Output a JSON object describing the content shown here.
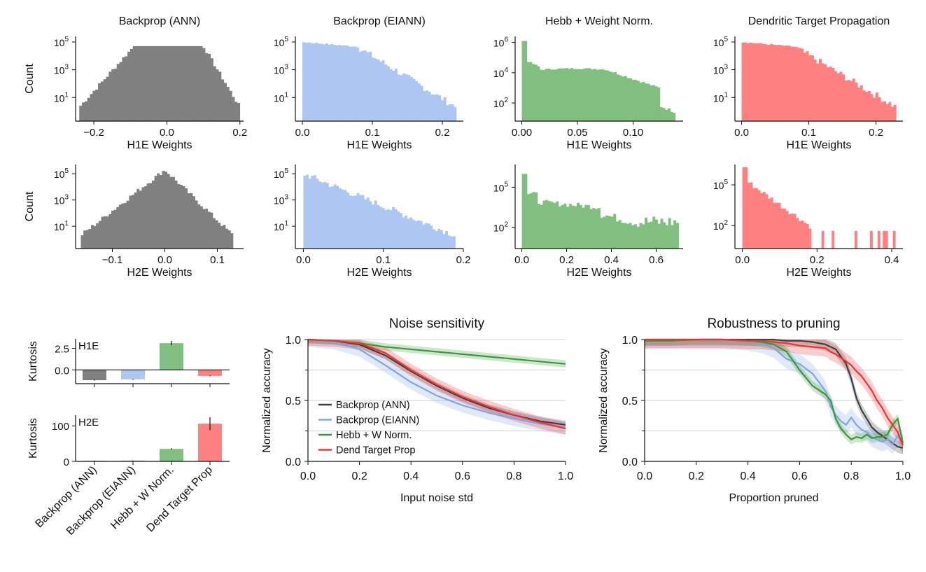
{
  "chart_data": {
    "histograms": {
      "columns": [
        "Backprop (ANN)",
        "Backprop (EIANN)",
        "Hebb + Weight Norm.",
        "Dendritic Target Propagation"
      ],
      "colors": [
        "#808080",
        "#aec7f2",
        "#80bf80",
        "#ff8080"
      ],
      "ylabel": "Count",
      "rows": [
        {
          "xlabel": "H1E Weights",
          "panels": [
            {
              "type": "histogram",
              "scale": "log",
              "shape": "symmetric_plateau",
              "range": [
                -0.24,
                0.2
              ],
              "xlim": [
                -0.25,
                0.21
              ],
              "plateau": [
                -0.09,
                0.1
              ],
              "ylog": [
                -0.7,
                5.4
              ],
              "peak": 4.7,
              "floor": 0.3,
              "xticks": [
                {
                  "v": -0.2,
                  "label": "−0.2"
                },
                {
                  "v": 0,
                  "label": "0.0"
                },
                {
                  "v": 0.2,
                  "label": "0.2"
                }
              ],
              "yticks": [
                {
                  "v": 1,
                  "label": "10",
                  "exp": "1"
                },
                {
                  "v": 3,
                  "label": "10",
                  "exp": "3"
                },
                {
                  "v": 5,
                  "label": "10",
                  "exp": "5"
                }
              ]
            },
            {
              "type": "histogram",
              "scale": "log",
              "shape": "decay",
              "range": [
                0,
                0.22
              ],
              "xlim": [
                -0.01,
                0.23
              ],
              "ylog": [
                -0.7,
                5.4
              ],
              "peak": 5.0,
              "shoulder": 0.08,
              "floor": 0.3,
              "xticks": [
                {
                  "v": 0,
                  "label": "0.0"
                },
                {
                  "v": 0.1,
                  "label": "0.1"
                },
                {
                  "v": 0.2,
                  "label": "0.2"
                }
              ],
              "yticks": [
                {
                  "v": 1,
                  "label": "10",
                  "exp": "1"
                },
                {
                  "v": 3,
                  "label": "10",
                  "exp": "3"
                },
                {
                  "v": 5,
                  "label": "10",
                  "exp": "5"
                }
              ]
            },
            {
              "type": "histogram",
              "scale": "log",
              "shape": "hebb",
              "range": [
                0,
                0.138
              ],
              "xlim": [
                -0.006,
                0.145
              ],
              "ylog": [
                0.8,
                6.4
              ],
              "peak": 6.1,
              "mid": 4.3,
              "floor": 1.4,
              "xticks": [
                {
                  "v": 0,
                  "label": "0.00"
                },
                {
                  "v": 0.05,
                  "label": "0.05"
                },
                {
                  "v": 0.1,
                  "label": "0.10"
                }
              ],
              "yticks": [
                {
                  "v": 2,
                  "label": "10",
                  "exp": "2"
                },
                {
                  "v": 4,
                  "label": "10",
                  "exp": "4"
                },
                {
                  "v": 6,
                  "label": "10",
                  "exp": "6"
                }
              ]
            },
            {
              "type": "histogram",
              "scale": "log",
              "shape": "decay",
              "range": [
                0,
                0.23
              ],
              "xlim": [
                -0.01,
                0.24
              ],
              "ylog": [
                -0.7,
                5.4
              ],
              "peak": 5.0,
              "shoulder": 0.08,
              "floor": 0.3,
              "xticks": [
                {
                  "v": 0,
                  "label": "0.0"
                },
                {
                  "v": 0.1,
                  "label": "0.1"
                },
                {
                  "v": 0.2,
                  "label": "0.2"
                }
              ],
              "yticks": [
                {
                  "v": 1,
                  "label": "10",
                  "exp": "1"
                },
                {
                  "v": 3,
                  "label": "10",
                  "exp": "3"
                },
                {
                  "v": 5,
                  "label": "10",
                  "exp": "5"
                }
              ]
            }
          ]
        },
        {
          "xlabel": "H2E Weights",
          "panels": [
            {
              "type": "histogram",
              "scale": "log",
              "shape": "symmetric_peak",
              "range": [
                -0.16,
                0.13
              ],
              "xlim": [
                -0.17,
                0.15
              ],
              "ylog": [
                -0.7,
                5.7
              ],
              "peak": 5.3,
              "floor": 0.3,
              "xticks": [
                {
                  "v": -0.1,
                  "label": "−0.1"
                },
                {
                  "v": 0,
                  "label": "0.0"
                },
                {
                  "v": 0.1,
                  "label": "0.1"
                }
              ],
              "yticks": [
                {
                  "v": 1,
                  "label": "10",
                  "exp": "1"
                },
                {
                  "v": 3,
                  "label": "10",
                  "exp": "3"
                },
                {
                  "v": 5,
                  "label": "10",
                  "exp": "5"
                }
              ]
            },
            {
              "type": "histogram",
              "scale": "log",
              "shape": "decay",
              "range": [
                0,
                0.19
              ],
              "xlim": [
                -0.01,
                0.2
              ],
              "ylog": [
                -0.7,
                5.7
              ],
              "peak": 5.4,
              "shoulder": 0.0,
              "floor": 0.3,
              "xticks": [
                {
                  "v": 0,
                  "label": "0.0"
                },
                {
                  "v": 0.1,
                  "label": "0.1"
                },
                {
                  "v": 0.2,
                  "label": "0.2"
                }
              ],
              "yticks": [
                {
                  "v": 1,
                  "label": "10",
                  "exp": "1"
                },
                {
                  "v": 3,
                  "label": "10",
                  "exp": "3"
                },
                {
                  "v": 5,
                  "label": "10",
                  "exp": "5"
                }
              ]
            },
            {
              "type": "histogram",
              "scale": "log",
              "shape": "hebb2",
              "range": [
                0,
                0.7
              ],
              "xlim": [
                -0.03,
                0.72
              ],
              "ylog": [
                0.4,
                6.7
              ],
              "peak": 6.0,
              "mid": 3.9,
              "floor": 1.8,
              "xticks": [
                {
                  "v": 0,
                  "label": "0.0"
                },
                {
                  "v": 0.2,
                  "label": "0.2"
                },
                {
                  "v": 0.4,
                  "label": "0.4"
                },
                {
                  "v": 0.6,
                  "label": "0.6"
                }
              ],
              "yticks": [
                {
                  "v": 2,
                  "label": "10",
                  "exp": "2"
                },
                {
                  "v": 5,
                  "label": "10",
                  "exp": "5"
                }
              ]
            },
            {
              "type": "histogram",
              "scale": "log",
              "shape": "sparse_decay",
              "range": [
                0,
                0.41
              ],
              "xlim": [
                -0.02,
                0.43
              ],
              "ylog": [
                0.3,
                6.5
              ],
              "peak": 6.3,
              "floor": 1.0,
              "xticks": [
                {
                  "v": 0,
                  "label": "0.0"
                },
                {
                  "v": 0.2,
                  "label": "0.2"
                },
                {
                  "v": 0.4,
                  "label": "0.4"
                }
              ],
              "yticks": [
                {
                  "v": 2,
                  "label": "10",
                  "exp": "2"
                },
                {
                  "v": 5,
                  "label": "10",
                  "exp": "5"
                }
              ]
            }
          ]
        }
      ]
    },
    "kurtosis": {
      "type": "bar",
      "categories": [
        "Backprop (ANN)",
        "Backprop (EIANN)",
        "Hebb + W Norm.",
        "Dend Target Prop"
      ],
      "colors": [
        "#808080",
        "#aec7f2",
        "#80bf80",
        "#ff8080"
      ],
      "ylabel": "Kurtosis",
      "panels": [
        {
          "label": "H1E",
          "values": [
            -1.2,
            -1.1,
            3.1,
            -0.7
          ],
          "errors": [
            0.05,
            0.05,
            0.25,
            0.05
          ],
          "ylim": [
            -1.6,
            3.6
          ],
          "yticks": [
            {
              "v": 0,
              "label": "0.0"
            },
            {
              "v": 2.5,
              "label": "2.5"
            }
          ]
        },
        {
          "label": "H2E",
          "values": [
            1.5,
            2.5,
            35,
            106
          ],
          "errors": [
            0.3,
            0.3,
            2,
            18
          ],
          "ylim": [
            0,
            130
          ],
          "yticks": [
            {
              "v": 0,
              "label": "0"
            },
            {
              "v": 100,
              "label": "100"
            }
          ]
        }
      ]
    },
    "noise": {
      "type": "line",
      "title": "Noise sensitivity",
      "xlabel": "Input noise std",
      "ylabel": "Normalized accuracy",
      "xlim": [
        0,
        1
      ],
      "ylim": [
        0,
        1
      ],
      "xticks": [
        {
          "v": 0,
          "label": "0.0"
        },
        {
          "v": 0.2,
          "label": "0.2"
        },
        {
          "v": 0.4,
          "label": "0.4"
        },
        {
          "v": 0.6,
          "label": "0.6"
        },
        {
          "v": 0.8,
          "label": "0.8"
        },
        {
          "v": 1.0,
          "label": "1.0"
        }
      ],
      "yticks": [
        {
          "v": 0,
          "label": "0.0"
        },
        {
          "v": 0.5,
          "label": "0.5"
        },
        {
          "v": 1.0,
          "label": "1.0"
        }
      ],
      "gridlines": [
        0.25,
        0.5,
        0.75,
        1.0
      ],
      "x": [
        0,
        0.1,
        0.2,
        0.3,
        0.4,
        0.5,
        0.6,
        0.7,
        0.8,
        0.9,
        1.0
      ],
      "series": [
        {
          "name": "Backprop (ANN)",
          "color": "#404040",
          "values": [
            1.0,
            0.99,
            0.96,
            0.87,
            0.74,
            0.62,
            0.52,
            0.44,
            0.38,
            0.33,
            0.3
          ],
          "band": 0.03
        },
        {
          "name": "Backprop (EIANN)",
          "color": "#7ea6e8",
          "values": [
            1.0,
            0.98,
            0.92,
            0.79,
            0.65,
            0.54,
            0.46,
            0.4,
            0.35,
            0.31,
            0.28
          ],
          "band": 0.06
        },
        {
          "name": "Hebb + W Norm.",
          "color": "#3a9a3a",
          "values": [
            1.0,
            0.99,
            0.97,
            0.94,
            0.92,
            0.9,
            0.88,
            0.86,
            0.84,
            0.82,
            0.8
          ],
          "band": 0.03
        },
        {
          "name": "Dend Target Prop",
          "color": "#ee3333",
          "values": [
            1.0,
            0.99,
            0.97,
            0.89,
            0.75,
            0.63,
            0.53,
            0.45,
            0.38,
            0.32,
            0.27
          ],
          "band": 0.05
        }
      ],
      "legend": "lower-left"
    },
    "pruning": {
      "type": "line",
      "title": "Robustness to pruning",
      "xlabel": "Proportion pruned",
      "ylabel": "Normalized accuracy",
      "xlim": [
        0,
        1
      ],
      "ylim": [
        0,
        1
      ],
      "xticks": [
        {
          "v": 0,
          "label": "0.0"
        },
        {
          "v": 0.2,
          "label": "0.2"
        },
        {
          "v": 0.4,
          "label": "0.4"
        },
        {
          "v": 0.6,
          "label": "0.6"
        },
        {
          "v": 0.8,
          "label": "0.8"
        },
        {
          "v": 1.0,
          "label": "1.0"
        }
      ],
      "yticks": [
        {
          "v": 0,
          "label": "0.0"
        },
        {
          "v": 0.5,
          "label": "0.5"
        },
        {
          "v": 1.0,
          "label": "1.0"
        }
      ],
      "gridlines": [
        0.25,
        0.5,
        0.75,
        1.0
      ],
      "x": [
        0,
        0.1,
        0.2,
        0.3,
        0.4,
        0.45,
        0.5,
        0.55,
        0.6,
        0.65,
        0.7,
        0.72,
        0.74,
        0.76,
        0.78,
        0.8,
        0.82,
        0.84,
        0.86,
        0.88,
        0.9,
        0.92,
        0.94,
        0.96,
        0.98,
        1.0
      ],
      "series": [
        {
          "name": "Backprop (ANN)",
          "color": "#404040",
          "band": 0.05,
          "values": [
            1.0,
            1.0,
            1.0,
            1.0,
            1.0,
            1.0,
            1.0,
            0.99,
            0.99,
            0.98,
            0.96,
            0.94,
            0.92,
            0.86,
            0.8,
            0.68,
            0.52,
            0.42,
            0.35,
            0.28,
            0.24,
            0.21,
            0.18,
            0.15,
            0.12,
            0.11
          ]
        },
        {
          "name": "Backprop (EIANN)",
          "color": "#7ea6e8",
          "band": 0.08,
          "values": [
            1.0,
            1.0,
            1.0,
            1.0,
            0.99,
            0.97,
            0.93,
            0.84,
            0.8,
            0.72,
            0.58,
            0.45,
            0.38,
            0.33,
            0.3,
            0.36,
            0.3,
            0.26,
            0.24,
            0.2,
            0.18,
            0.16,
            0.18,
            0.14,
            0.21,
            0.14
          ]
        },
        {
          "name": "Hebb + W Norm.",
          "color": "#3a9a3a",
          "band": 0.04,
          "values": [
            0.99,
            0.99,
            1.0,
            1.0,
            0.99,
            0.98,
            0.96,
            0.9,
            0.75,
            0.62,
            0.55,
            0.5,
            0.35,
            0.27,
            0.22,
            0.18,
            0.2,
            0.19,
            0.22,
            0.19,
            0.2,
            0.2,
            0.22,
            0.3,
            0.35,
            0.15
          ]
        },
        {
          "name": "Dend Target Prop",
          "color": "#ee3333",
          "band": 0.07,
          "values": [
            1.0,
            1.0,
            1.0,
            1.0,
            0.99,
            0.99,
            0.98,
            0.97,
            0.95,
            0.94,
            0.93,
            0.9,
            0.88,
            0.85,
            0.82,
            0.79,
            0.74,
            0.7,
            0.64,
            0.58,
            0.5,
            0.44,
            0.36,
            0.3,
            0.24,
            0.13
          ]
        }
      ]
    }
  }
}
